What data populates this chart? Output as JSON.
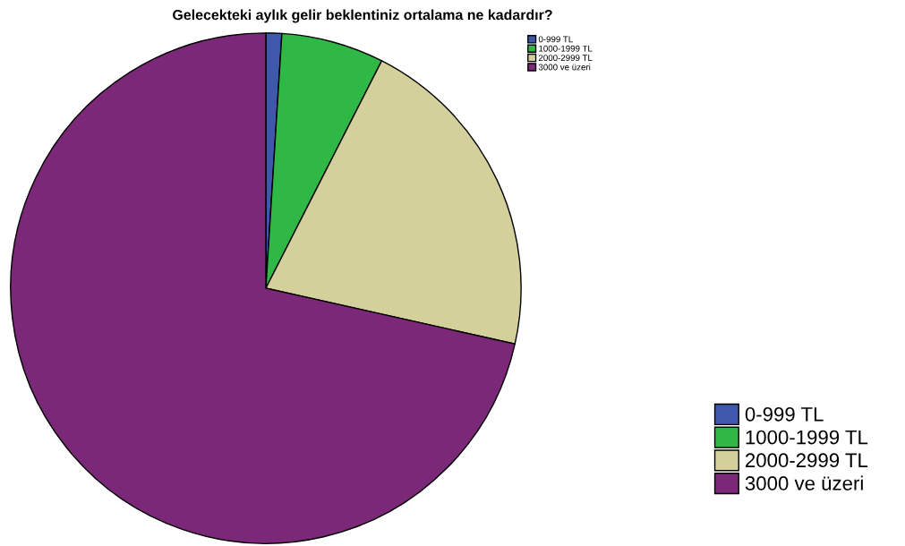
{
  "chart_data": {
    "type": "pie",
    "title": "Gelecekteki aylık gelir beklentiniz ortalama ne kadardır?",
    "categories": [
      "0-999 TL",
      "1000-1999 TL",
      "2000-2999 TL",
      "3000 ve üzeri"
    ],
    "values": [
      1.0,
      6.5,
      21.0,
      71.5
    ],
    "colors": [
      "#3e58ac",
      "#2fb846",
      "#d4d09b",
      "#7a2877"
    ],
    "legend": [
      "top right",
      "bottom right"
    ]
  }
}
